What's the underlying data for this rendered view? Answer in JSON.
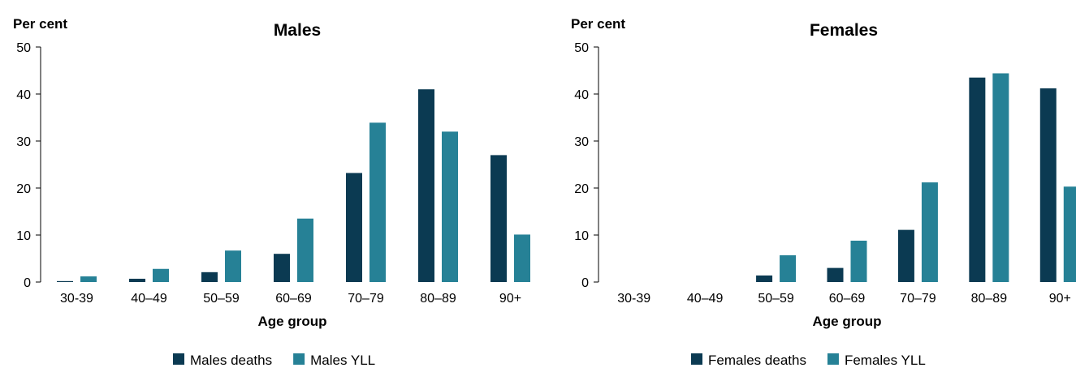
{
  "colors": {
    "deaths": "#0b3a52",
    "yll": "#268196"
  },
  "chart_data": [
    {
      "type": "bar",
      "title": "Males",
      "ylabel": "Per cent",
      "xlabel": "Age group",
      "ylim": [
        0,
        50
      ],
      "yticks": [
        0,
        10,
        20,
        30,
        40,
        50
      ],
      "categories": [
        "30-39",
        "40–49",
        "50–59",
        "60–69",
        "70–79",
        "80–89",
        "90+"
      ],
      "series": [
        {
          "name": "Males deaths",
          "values": [
            0.2,
            0.7,
            2.1,
            6.0,
            23.2,
            41.0,
            27.0
          ]
        },
        {
          "name": "Males YLL",
          "values": [
            1.2,
            2.8,
            6.7,
            13.5,
            33.9,
            32.0,
            10.1
          ]
        }
      ],
      "legend": "bottom"
    },
    {
      "type": "bar",
      "title": "Females",
      "ylabel": "Per cent",
      "xlabel": "Age group",
      "ylim": [
        0,
        50
      ],
      "yticks": [
        0,
        10,
        20,
        30,
        40,
        50
      ],
      "categories": [
        "30-39",
        "40–49",
        "50–59",
        "60–69",
        "70–79",
        "80–89",
        "90+"
      ],
      "series": [
        {
          "name": "Females deaths",
          "values": [
            0,
            0,
            1.4,
            3.0,
            11.1,
            43.5,
            41.2
          ]
        },
        {
          "name": "Females YLL",
          "values": [
            0,
            0,
            5.7,
            8.8,
            21.2,
            44.4,
            20.3
          ]
        }
      ],
      "legend": "bottom"
    }
  ]
}
